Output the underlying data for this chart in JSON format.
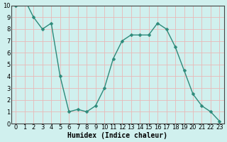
{
  "x": [
    0,
    1,
    2,
    3,
    4,
    5,
    6,
    7,
    8,
    9,
    10,
    11,
    12,
    13,
    14,
    15,
    16,
    17,
    18,
    19,
    20,
    21,
    22,
    23
  ],
  "y": [
    10,
    10.5,
    9,
    8,
    8.5,
    4,
    1.0,
    1.2,
    1.0,
    1.5,
    3.0,
    5.5,
    7.0,
    7.5,
    7.5,
    7.5,
    8.5,
    8.0,
    6.5,
    4.5,
    2.5,
    1.5,
    1.0,
    0.2
  ],
  "line_color": "#2d8a7a",
  "marker_color": "#2d8a7a",
  "bg_color": "#d0f0ee",
  "grid_color": "#e8b8b8",
  "xlabel": "Humidex (Indice chaleur)",
  "xlim_min": -0.5,
  "xlim_max": 23.5,
  "ylim": [
    0,
    10
  ],
  "yticks": [
    0,
    1,
    2,
    3,
    4,
    5,
    6,
    7,
    8,
    9,
    10
  ],
  "xticks": [
    0,
    1,
    2,
    3,
    4,
    5,
    6,
    7,
    8,
    9,
    10,
    11,
    12,
    13,
    14,
    15,
    16,
    17,
    18,
    19,
    20,
    21,
    22,
    23
  ],
  "xlabel_fontsize": 7,
  "tick_fontsize": 6,
  "marker_size": 2.5,
  "line_width": 1.0
}
